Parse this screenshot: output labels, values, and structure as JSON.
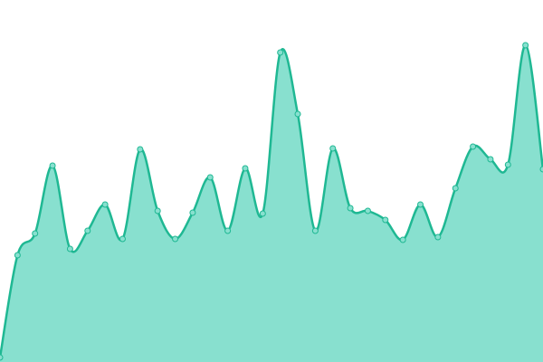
{
  "chart_data": {
    "type": "area",
    "values": [
      5,
      118,
      142,
      217,
      125,
      145,
      174,
      136,
      235,
      167,
      136,
      165,
      204,
      145,
      214,
      164,
      342,
      274,
      145,
      236,
      170,
      167,
      157,
      135,
      174,
      138,
      192,
      238,
      224,
      218,
      350,
      213
    ],
    "color": "#1fb893",
    "fill": "#88e0cf",
    "ylim": [
      0,
      400
    ]
  }
}
